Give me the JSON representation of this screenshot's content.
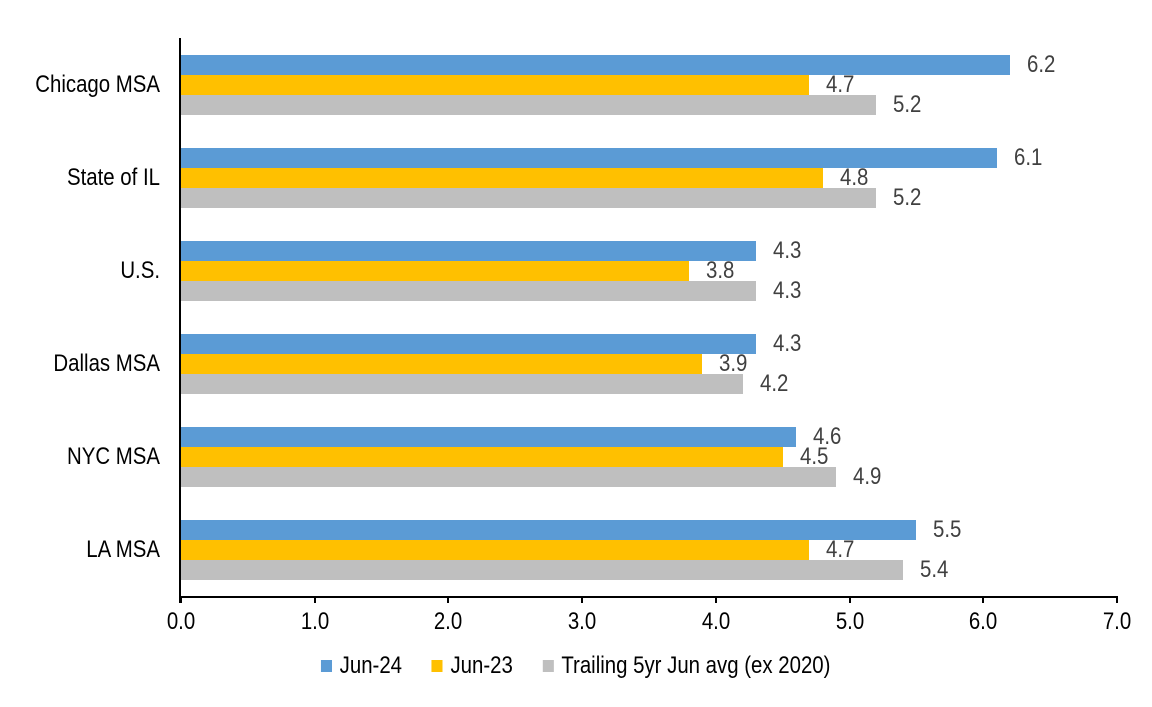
{
  "chart_data": {
    "type": "bar",
    "orientation": "horizontal",
    "categories": [
      "Chicago MSA",
      "State of IL",
      "U.S.",
      "Dallas MSA",
      "NYC MSA",
      "LA MSA"
    ],
    "series": [
      {
        "name": "Jun-24",
        "color": "#5B9BD5",
        "values": [
          6.2,
          6.1,
          4.3,
          4.3,
          4.6,
          5.5
        ]
      },
      {
        "name": "Jun-23",
        "color": "#FFC000",
        "values": [
          4.7,
          4.8,
          3.8,
          3.9,
          4.5,
          4.7
        ]
      },
      {
        "name": "Trailing 5yr Jun avg (ex 2020)",
        "color": "#BFBFBF",
        "values": [
          5.2,
          5.2,
          4.3,
          4.2,
          4.9,
          5.4
        ]
      }
    ],
    "xlim": [
      0.0,
      7.0
    ],
    "x_ticks": [
      "0.0",
      "1.0",
      "2.0",
      "3.0",
      "4.0",
      "5.0",
      "6.0",
      "7.0"
    ],
    "grid": false,
    "legend_position": "bottom",
    "colors": {
      "axis": "#000000",
      "data_label": "#404040",
      "text": "#000000",
      "background": "#FFFFFF"
    }
  }
}
